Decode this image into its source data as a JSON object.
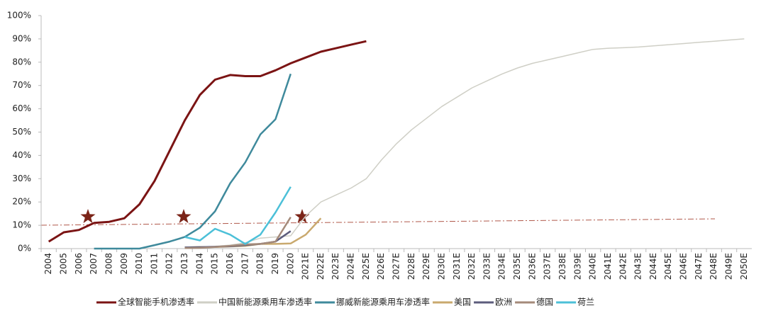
{
  "chart_data": {
    "type": "line",
    "categories": [
      "2004",
      "2005",
      "2006",
      "2007",
      "2008",
      "2009",
      "2010",
      "2011",
      "2012",
      "2013",
      "2014",
      "2015",
      "2016",
      "2017",
      "2018",
      "2019",
      "2020",
      "2021E",
      "2022E",
      "2023E",
      "2024E",
      "2025E",
      "2026E",
      "2027E",
      "2028E",
      "2029E",
      "2030E",
      "2031E",
      "2032E",
      "2033E",
      "2034E",
      "2035E",
      "2036E",
      "2037E",
      "2038E",
      "2039E",
      "2040E",
      "2041E",
      "2042E",
      "2043E",
      "2044E",
      "2045E",
      "2046E",
      "2047E",
      "2048E",
      "2049E",
      "2050E"
    ],
    "series": [
      {
        "name": "全球智能手机渗透率",
        "color": "#7b1414",
        "width": 3,
        "values": [
          3,
          7,
          8,
          11,
          11.5,
          13,
          19,
          29,
          42,
          55,
          66,
          72.5,
          74.5,
          74,
          74,
          76.5,
          79.5,
          82,
          84.5,
          86,
          87.5,
          89,
          null,
          null,
          null,
          null,
          null,
          null,
          null,
          null,
          null,
          null,
          null,
          null,
          null,
          null,
          null,
          null,
          null,
          null,
          null,
          null,
          null,
          null,
          null,
          null,
          null
        ]
      },
      {
        "name": "中国新能源乘用车渗透率",
        "color": "#cfcfc6",
        "width": 1.5,
        "values": [
          null,
          null,
          null,
          null,
          null,
          null,
          null,
          null,
          null,
          null,
          null,
          1,
          1.5,
          2.5,
          4.5,
          5,
          5.5,
          14,
          20,
          23,
          26,
          30,
          38,
          45,
          51,
          56,
          61,
          65,
          69,
          72,
          75,
          77.5,
          79.5,
          81,
          82.5,
          84,
          85.5,
          86,
          86.2,
          86.5,
          87,
          87.5,
          88,
          88.5,
          89,
          89.5,
          90
        ]
      },
      {
        "name": "挪威新能源乘用车渗透率",
        "color": "#3f8a9c",
        "width": 2.5,
        "values": [
          null,
          null,
          null,
          0,
          0,
          0,
          0,
          1.5,
          3,
          5,
          9,
          16,
          28,
          37,
          49,
          55.5,
          75,
          null,
          null,
          null,
          null,
          null,
          null,
          null,
          null,
          null,
          null,
          null,
          null,
          null,
          null,
          null,
          null,
          null,
          null,
          null,
          null,
          null,
          null,
          null,
          null,
          null,
          null,
          null,
          null,
          null,
          null
        ]
      },
      {
        "name": "美国",
        "color": "#c9a96e",
        "width": 2.5,
        "values": [
          null,
          null,
          null,
          null,
          null,
          null,
          null,
          null,
          null,
          0.5,
          0.7,
          0.7,
          0.9,
          1.2,
          2,
          2,
          2.2,
          6,
          13,
          null,
          null,
          null,
          null,
          null,
          null,
          null,
          null,
          null,
          null,
          null,
          null,
          null,
          null,
          null,
          null,
          null,
          null,
          null,
          null,
          null,
          null,
          null,
          null,
          null,
          null,
          null,
          null
        ]
      },
      {
        "name": "欧洲",
        "color": "#5c5c7c",
        "width": 2.5,
        "values": [
          null,
          null,
          null,
          null,
          null,
          null,
          null,
          null,
          null,
          0.5,
          0.6,
          0.8,
          1,
          1.5,
          2,
          3,
          7.5,
          null,
          null,
          null,
          null,
          null,
          null,
          null,
          null,
          null,
          null,
          null,
          null,
          null,
          null,
          null,
          null,
          null,
          null,
          null,
          null,
          null,
          null,
          null,
          null,
          null,
          null,
          null,
          null,
          null,
          null
        ]
      },
      {
        "name": "德国",
        "color": "#a48a7a",
        "width": 2.5,
        "values": [
          null,
          null,
          null,
          null,
          null,
          null,
          null,
          null,
          null,
          0.2,
          0.3,
          0.7,
          1.2,
          1.8,
          2,
          3,
          13.5,
          null,
          null,
          null,
          null,
          null,
          null,
          null,
          null,
          null,
          null,
          null,
          null,
          null,
          null,
          null,
          null,
          null,
          null,
          null,
          null,
          null,
          null,
          null,
          null,
          null,
          null,
          null,
          null,
          null,
          null
        ]
      },
      {
        "name": "荷兰",
        "color": "#4cc0d8",
        "width": 2.5,
        "values": [
          null,
          null,
          null,
          null,
          null,
          null,
          null,
          null,
          null,
          5,
          3.5,
          8.5,
          6,
          2,
          6,
          15.5,
          26.5,
          null,
          null,
          null,
          null,
          null,
          null,
          null,
          null,
          null,
          null,
          null,
          null,
          null,
          null,
          null,
          null,
          null,
          null,
          null,
          null,
          null,
          null,
          null,
          null,
          null,
          null,
          null,
          null,
          null,
          null
        ]
      }
    ],
    "ylim": [
      0,
      100
    ],
    "yticks": [
      {
        "value": 0,
        "label": "0%"
      },
      {
        "value": 10,
        "label": "10%"
      },
      {
        "value": 20,
        "label": "20%"
      },
      {
        "value": 30,
        "label": "30%"
      },
      {
        "value": 40,
        "label": "40%"
      },
      {
        "value": 50,
        "label": "50%"
      },
      {
        "value": 60,
        "label": "60%"
      },
      {
        "value": 70,
        "label": "70%"
      },
      {
        "value": 80,
        "label": "80%"
      },
      {
        "value": 90,
        "label": "90%"
      },
      {
        "value": 100,
        "label": "100%"
      }
    ],
    "legend": "bottom"
  }
}
